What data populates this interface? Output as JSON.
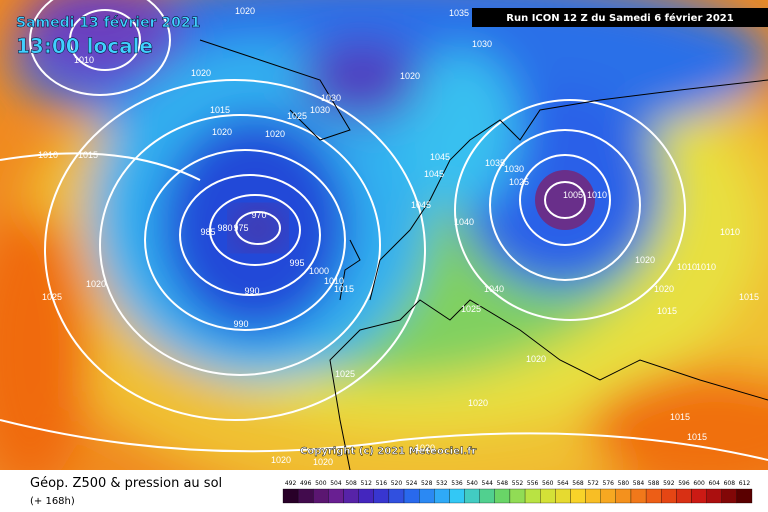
{
  "header": {
    "date": "Samedi 13 février 2021",
    "time": "13:00 locale",
    "run": "Run ICON 12 Z du Samedi 6 février 2021"
  },
  "copyright": "Copyright (c) 2021 Meteociel.fr",
  "legend": {
    "title": "Géop. Z500 & pression au sol",
    "lead": "(+ 168h)"
  },
  "colorbar": {
    "labels": [
      492,
      496,
      500,
      504,
      508,
      512,
      516,
      520,
      524,
      528,
      532,
      536,
      540,
      544,
      548,
      552,
      556,
      560,
      564,
      568,
      572,
      576,
      580,
      584,
      588,
      592,
      596,
      600,
      604,
      608,
      612
    ]
  },
  "isobars": {
    "labels": [
      1020,
      1010,
      1020,
      1015,
      1020,
      1010,
      1015,
      1020,
      1025,
      1030,
      1030,
      1020,
      1030,
      1035,
      1045,
      1045,
      1045,
      1040,
      1035,
      1030,
      1025,
      1005,
      1010,
      970,
      985,
      980,
      975,
      995,
      1000,
      1010,
      1015,
      990,
      990,
      1025,
      1020,
      1040,
      1025,
      1020,
      1020,
      1010,
      1010,
      1010,
      1015,
      1015,
      1025,
      1020,
      1020,
      1015,
      1015,
      1020,
      1020,
      1020
    ]
  }
}
